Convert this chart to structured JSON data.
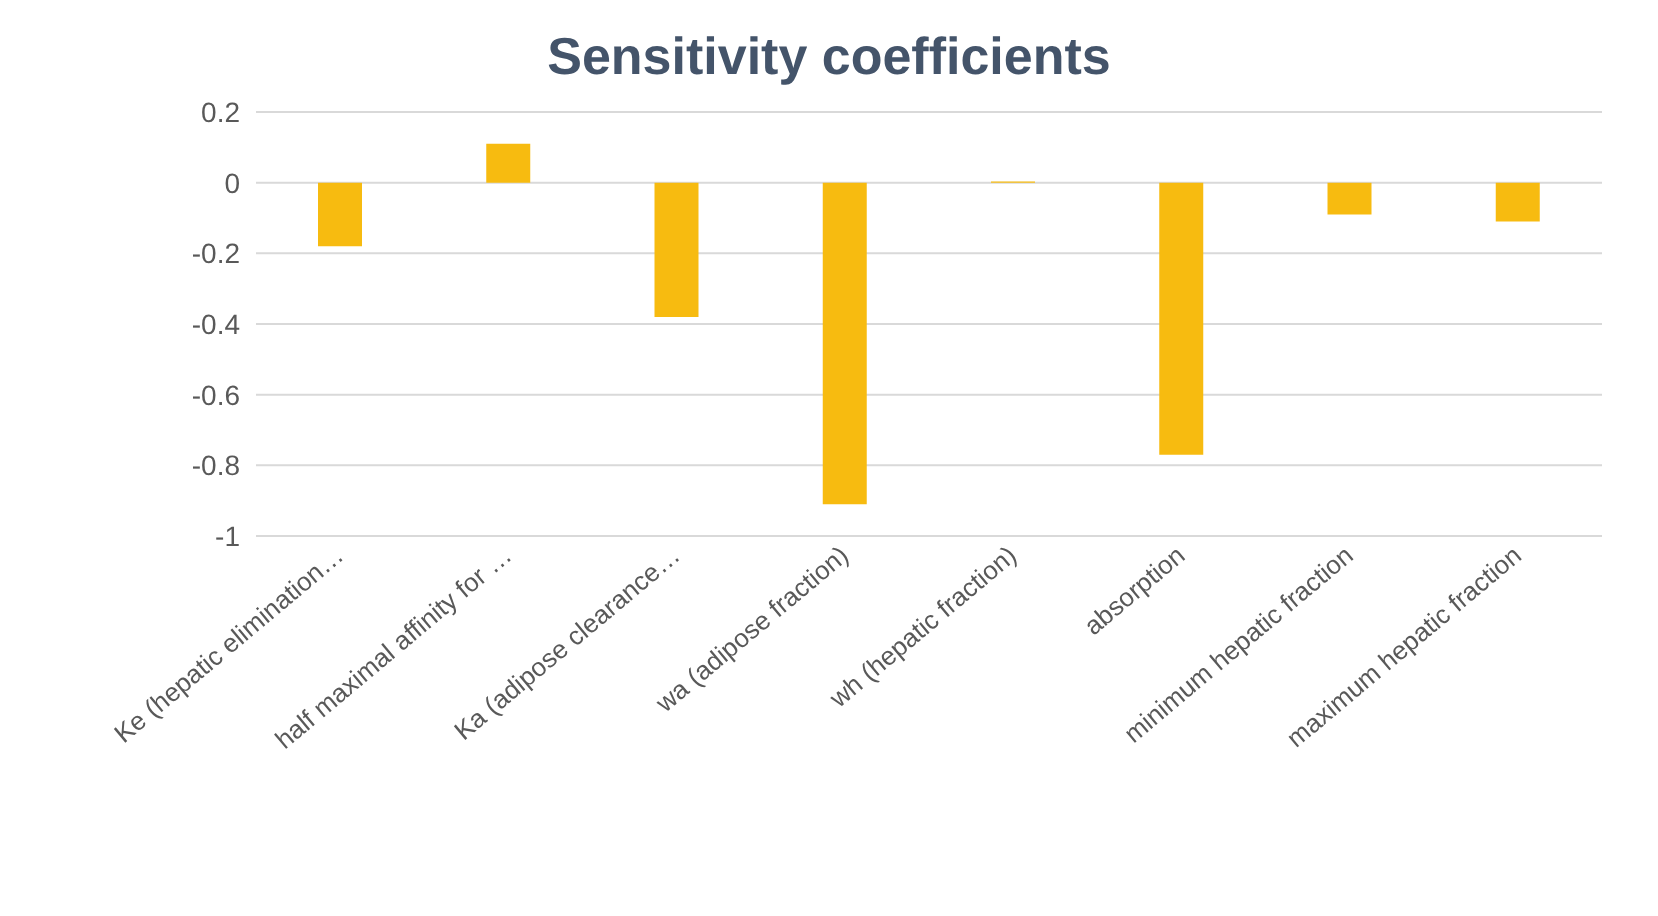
{
  "chart_data": {
    "type": "bar",
    "title": "Sensitivity coefficients",
    "categories": [
      "Ke (hepatic elimination…",
      "half maximal affinity for …",
      "Ka (adipose clearance…",
      "wa (adipose fraction)",
      "wh (hepatic fraction)",
      "absorption",
      "minimum hepatic fraction",
      "maximum hepatic fraction"
    ],
    "values": [
      -0.18,
      0.11,
      -0.38,
      -0.91,
      0.003,
      -0.77,
      -0.09,
      -0.11
    ],
    "color": "#f7bb10",
    "ylim": [
      -1,
      0.2
    ],
    "yticks": [
      -1,
      -0.8,
      -0.6,
      -0.4,
      -0.2,
      0,
      0.2
    ],
    "grid": "y"
  }
}
